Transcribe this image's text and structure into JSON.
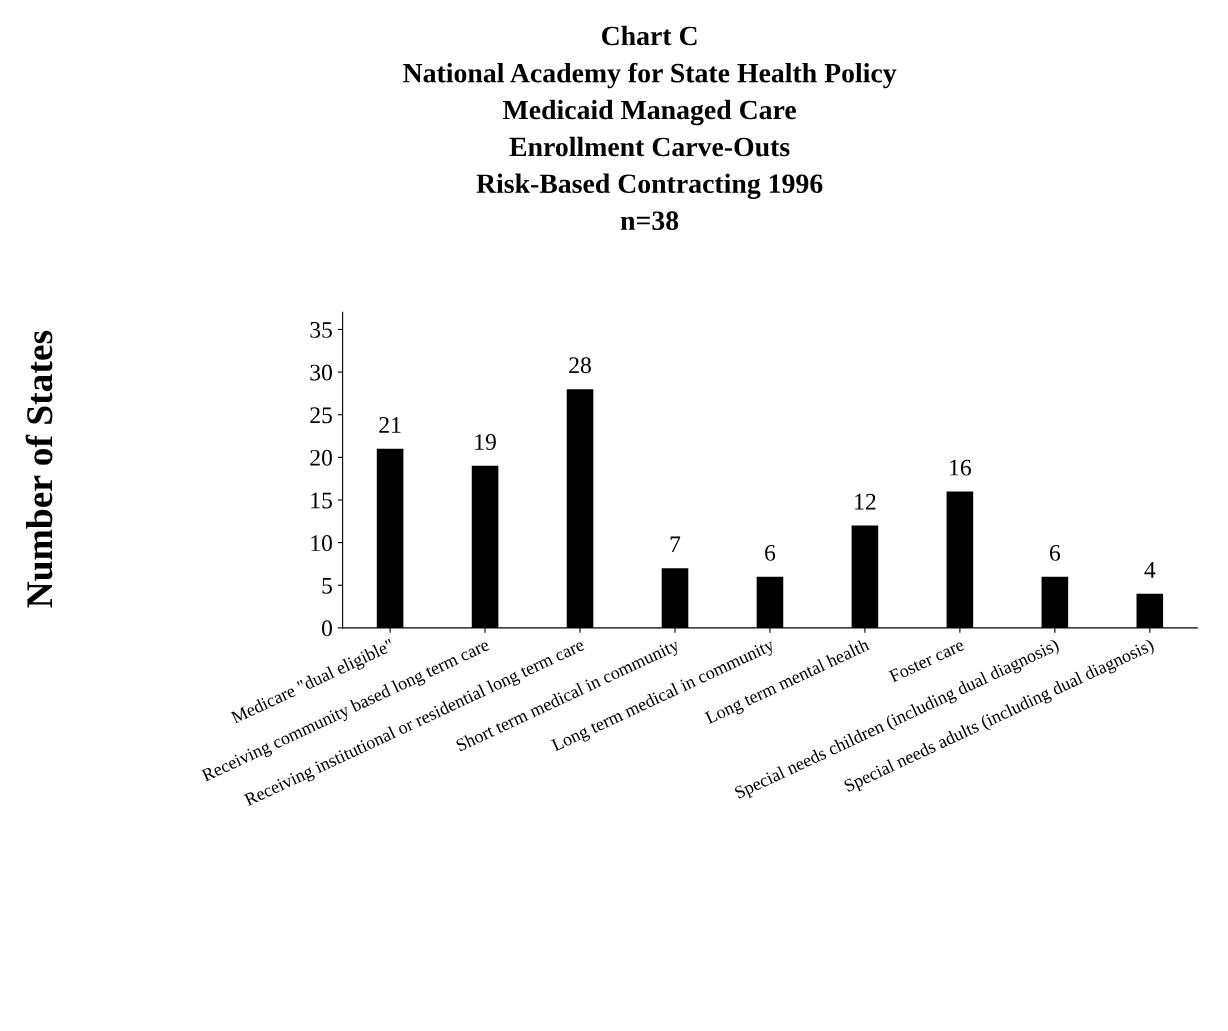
{
  "chart_data": {
    "type": "bar",
    "title": "Chart C\nNational Academy for State Health Policy\nMedicaid Managed Care\nEnrollment Carve-Outs\nRisk-Based Contracting 1996\nn=38",
    "ylabel": "Number of States",
    "categories": [
      "Medicare \"dual eligible\"",
      "Receiving community based long term care",
      "Receiving institutional or residential long term care",
      "Short term medical in community",
      "Long term medical in community",
      "Long term mental health",
      "Foster care",
      "Special needs children (including dual diagnosis)",
      "Special needs adults (including dual diagnosis)"
    ],
    "values": [
      21,
      19,
      28,
      7,
      6,
      12,
      16,
      6,
      4
    ],
    "color": "#000000",
    "ylim": [
      0,
      37
    ],
    "yticks": [
      0,
      5,
      10,
      15,
      20,
      25,
      30,
      35
    ],
    "grid": false,
    "legend": false,
    "data_labels": true
  }
}
